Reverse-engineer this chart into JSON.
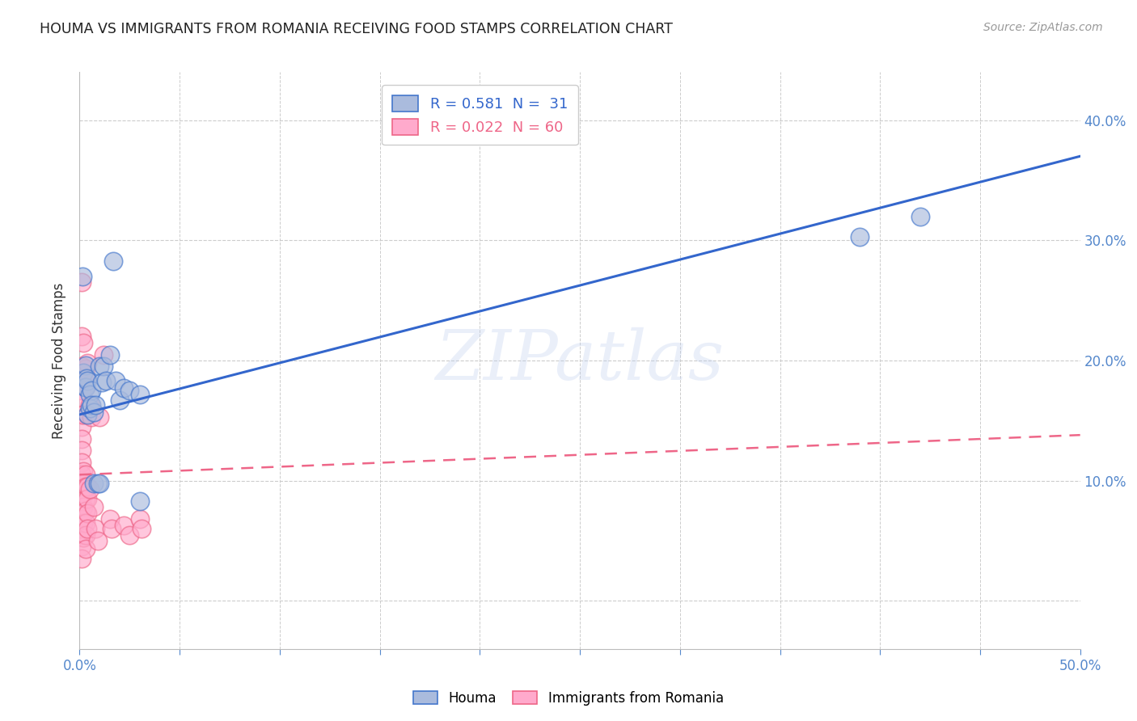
{
  "title": "HOUMA VS IMMIGRANTS FROM ROMANIA RECEIVING FOOD STAMPS CORRELATION CHART",
  "source": "Source: ZipAtlas.com",
  "ylabel": "Receiving Food Stamps",
  "xlim": [
    0.0,
    0.5
  ],
  "ylim": [
    -0.04,
    0.44
  ],
  "yticks": [
    0.0,
    0.1,
    0.2,
    0.3,
    0.4
  ],
  "xticks": [
    0.0,
    0.05,
    0.1,
    0.15,
    0.2,
    0.25,
    0.3,
    0.35,
    0.4,
    0.45,
    0.5
  ],
  "xtick_labels_show": [
    "0.0%",
    "",
    "",
    "",
    "",
    "",
    "",
    "",
    "",
    "",
    "50.0%"
  ],
  "ytick_labels_right": [
    "",
    "10.0%",
    "20.0%",
    "30.0%",
    "40.0%"
  ],
  "legend_label1": "R = 0.581  N =  31",
  "legend_label2": "R = 0.022  N = 60",
  "color_houma_face": "#aabbdd",
  "color_houma_edge": "#4477cc",
  "color_romania_face": "#ffaacc",
  "color_romania_edge": "#ee6688",
  "line_color_houma": "#3366cc",
  "line_color_romania": "#ee6688",
  "watermark": "ZIPatlas",
  "houma_points": [
    [
      0.0015,
      0.27
    ],
    [
      0.002,
      0.19
    ],
    [
      0.0025,
      0.178
    ],
    [
      0.003,
      0.196
    ],
    [
      0.003,
      0.178
    ],
    [
      0.0035,
      0.185
    ],
    [
      0.004,
      0.155
    ],
    [
      0.004,
      0.183
    ],
    [
      0.005,
      0.172
    ],
    [
      0.005,
      0.16
    ],
    [
      0.006,
      0.175
    ],
    [
      0.006,
      0.163
    ],
    [
      0.007,
      0.098
    ],
    [
      0.007,
      0.157
    ],
    [
      0.008,
      0.163
    ],
    [
      0.009,
      0.098
    ],
    [
      0.01,
      0.098
    ],
    [
      0.01,
      0.195
    ],
    [
      0.011,
      0.182
    ],
    [
      0.012,
      0.195
    ],
    [
      0.013,
      0.183
    ],
    [
      0.015,
      0.205
    ],
    [
      0.017,
      0.283
    ],
    [
      0.018,
      0.183
    ],
    [
      0.02,
      0.167
    ],
    [
      0.022,
      0.177
    ],
    [
      0.025,
      0.175
    ],
    [
      0.03,
      0.172
    ],
    [
      0.03,
      0.083
    ],
    [
      0.39,
      0.303
    ],
    [
      0.42,
      0.32
    ]
  ],
  "romania_points": [
    [
      0.001,
      0.265
    ],
    [
      0.001,
      0.22
    ],
    [
      0.001,
      0.195
    ],
    [
      0.001,
      0.19
    ],
    [
      0.001,
      0.185
    ],
    [
      0.001,
      0.175
    ],
    [
      0.001,
      0.165
    ],
    [
      0.001,
      0.155
    ],
    [
      0.001,
      0.145
    ],
    [
      0.001,
      0.135
    ],
    [
      0.001,
      0.125
    ],
    [
      0.001,
      0.115
    ],
    [
      0.001,
      0.105
    ],
    [
      0.001,
      0.098
    ],
    [
      0.001,
      0.09
    ],
    [
      0.001,
      0.08
    ],
    [
      0.001,
      0.068
    ],
    [
      0.001,
      0.055
    ],
    [
      0.001,
      0.045
    ],
    [
      0.001,
      0.035
    ],
    [
      0.002,
      0.215
    ],
    [
      0.002,
      0.19
    ],
    [
      0.002,
      0.185
    ],
    [
      0.002,
      0.155
    ],
    [
      0.002,
      0.108
    ],
    [
      0.002,
      0.098
    ],
    [
      0.002,
      0.088
    ],
    [
      0.002,
      0.078
    ],
    [
      0.002,
      0.065
    ],
    [
      0.002,
      0.053
    ],
    [
      0.003,
      0.193
    ],
    [
      0.003,
      0.185
    ],
    [
      0.003,
      0.178
    ],
    [
      0.003,
      0.105
    ],
    [
      0.003,
      0.095
    ],
    [
      0.003,
      0.085
    ],
    [
      0.003,
      0.075
    ],
    [
      0.003,
      0.065
    ],
    [
      0.003,
      0.055
    ],
    [
      0.003,
      0.043
    ],
    [
      0.004,
      0.198
    ],
    [
      0.004,
      0.155
    ],
    [
      0.004,
      0.095
    ],
    [
      0.004,
      0.085
    ],
    [
      0.004,
      0.073
    ],
    [
      0.004,
      0.06
    ],
    [
      0.005,
      0.163
    ],
    [
      0.005,
      0.093
    ],
    [
      0.006,
      0.153
    ],
    [
      0.007,
      0.078
    ],
    [
      0.008,
      0.06
    ],
    [
      0.009,
      0.05
    ],
    [
      0.01,
      0.153
    ],
    [
      0.012,
      0.205
    ],
    [
      0.015,
      0.068
    ],
    [
      0.016,
      0.06
    ],
    [
      0.022,
      0.063
    ],
    [
      0.025,
      0.055
    ],
    [
      0.03,
      0.068
    ],
    [
      0.031,
      0.06
    ]
  ],
  "houma_line": [
    [
      0.0,
      0.155
    ],
    [
      0.5,
      0.37
    ]
  ],
  "romania_line": [
    [
      0.0,
      0.105
    ],
    [
      0.5,
      0.138
    ]
  ],
  "bg_color": "#ffffff",
  "grid_color": "#cccccc",
  "tick_color": "#5588cc",
  "title_color": "#222222",
  "axis_label_color": "#333333"
}
